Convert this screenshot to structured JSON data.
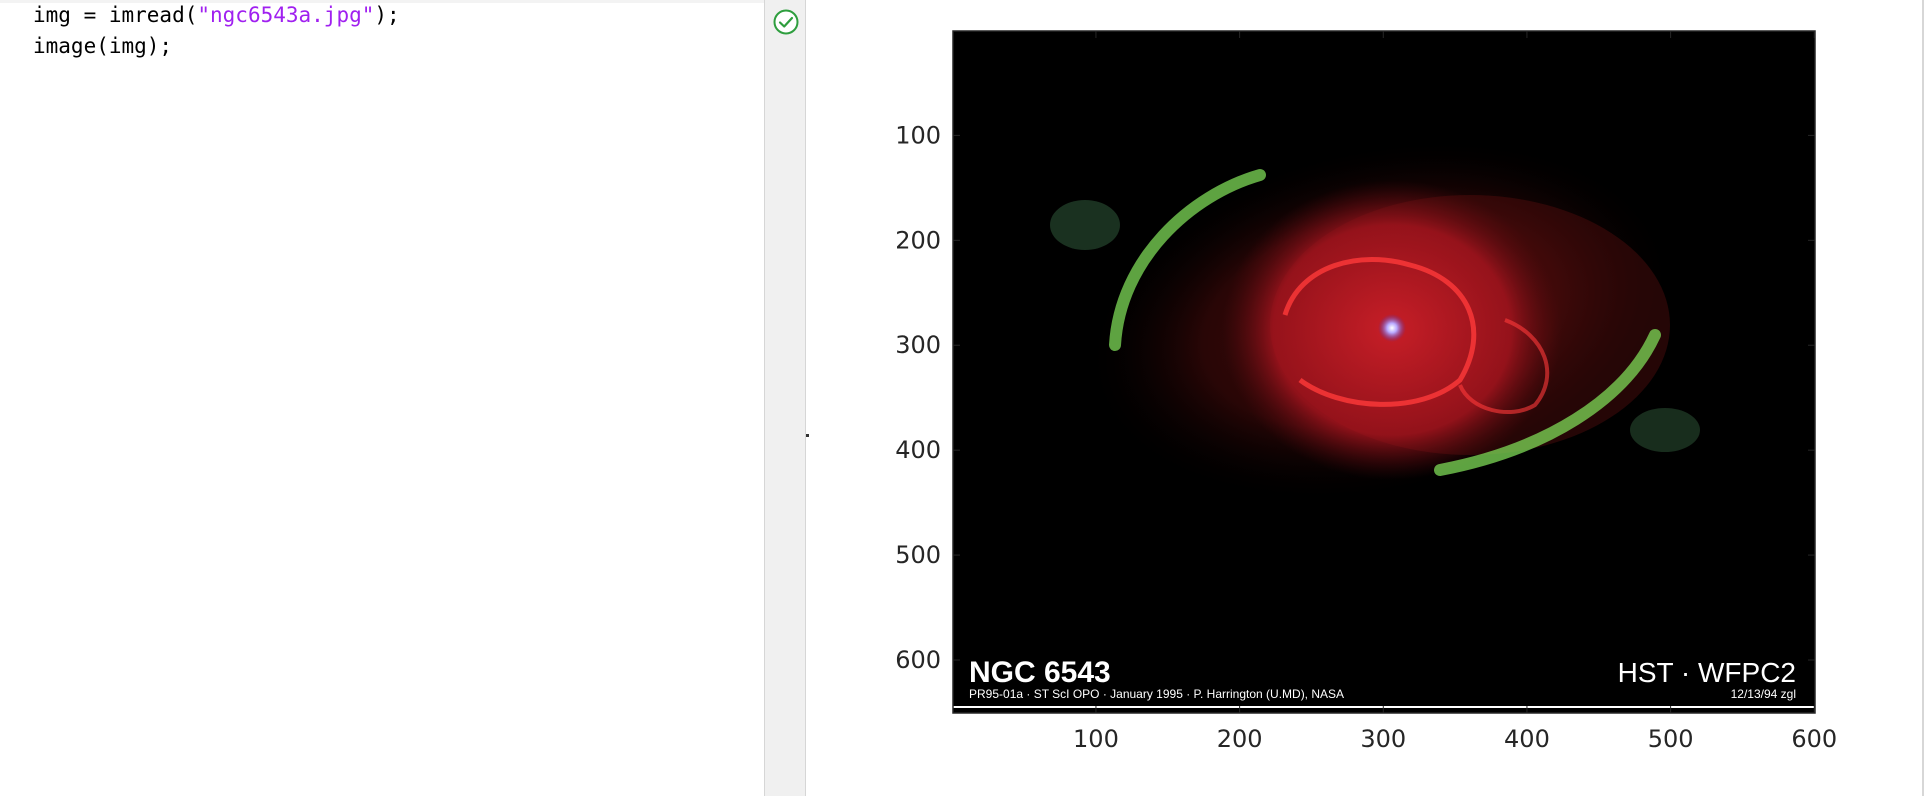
{
  "editor": {
    "lines": [
      {
        "prefix": "img = imread(",
        "string": "\"ngc6543a.jpg\"",
        "suffix": ");"
      },
      {
        "prefix": "image(img);",
        "string": "",
        "suffix": ""
      }
    ]
  },
  "status": {
    "icon": "check-circle-icon",
    "color": "#2e9e3e"
  },
  "figure": {
    "image_title": "NGC 6543",
    "image_instrument": "HST · WFPC2",
    "image_credit": "PR95-01a · ST ScI OPO · January 1995 · P. Harrington (U.MD), NASA",
    "image_date": "12/13/94 zgl"
  },
  "chart_data": {
    "type": "image",
    "xlim": [
      0.5,
      600.5
    ],
    "ylim": [
      0.5,
      650.5
    ],
    "y_reversed": true,
    "xticks": [
      100,
      200,
      300,
      400,
      500,
      600
    ],
    "yticks": [
      100,
      200,
      300,
      400,
      500,
      600
    ],
    "colors": {
      "axes": "#262626",
      "image_background": "#000000"
    }
  }
}
